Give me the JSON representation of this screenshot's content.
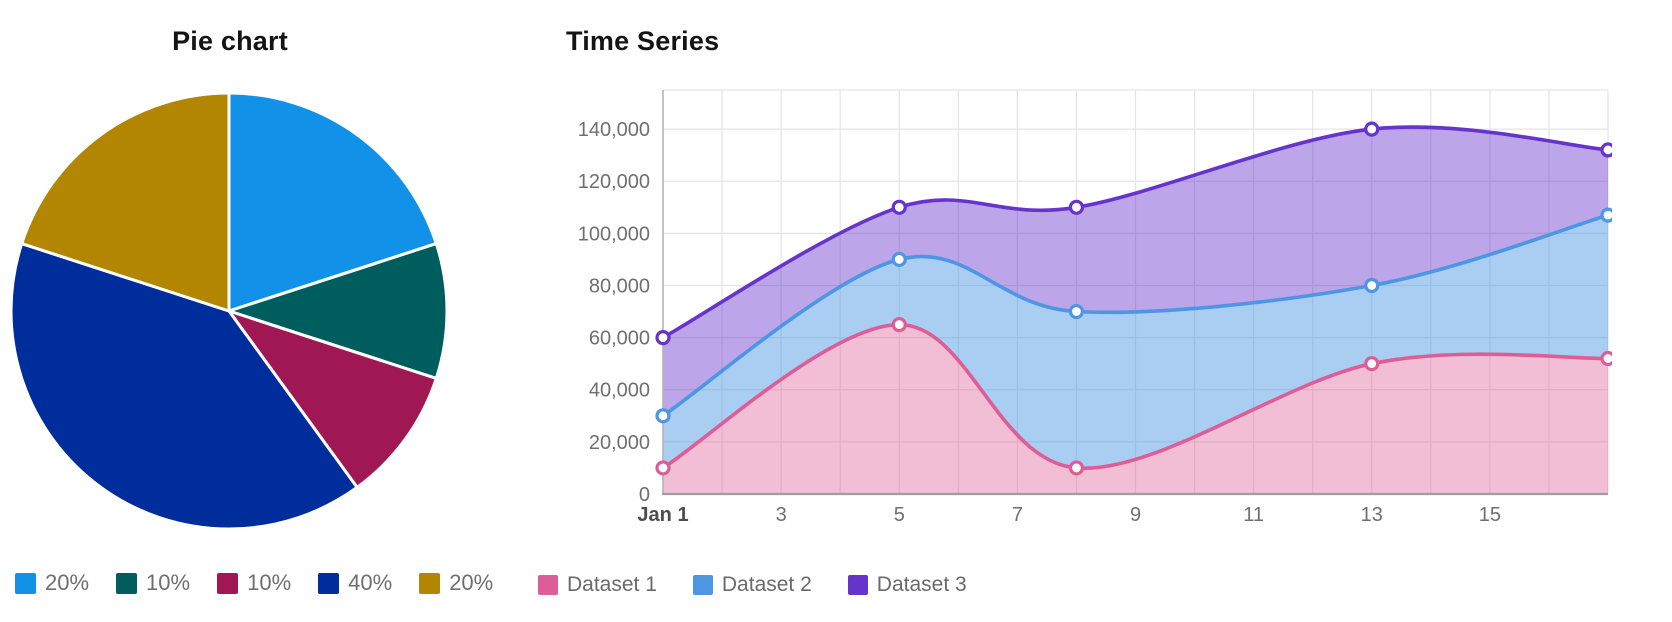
{
  "chart_data": [
    {
      "type": "pie",
      "title": "Pie chart",
      "labels": [
        "20%",
        "10%",
        "10%",
        "40%",
        "20%"
      ],
      "values": [
        20,
        10,
        10,
        40,
        20
      ],
      "colors": [
        "#1192e8",
        "#005d5d",
        "#9f1853",
        "#002d9c",
        "#b28600"
      ],
      "start_angle": "top",
      "direction": "clockwise",
      "slice_border_color": "#ffffff",
      "legend_position": "bottom"
    },
    {
      "type": "area",
      "title": "Time Series",
      "x_days": [
        1,
        5,
        8,
        13,
        17
      ],
      "x_ticks": [
        {
          "day": 1,
          "label": "Jan 1",
          "bold": true
        },
        {
          "day": 3,
          "label": "3"
        },
        {
          "day": 5,
          "label": "5"
        },
        {
          "day": 7,
          "label": "7"
        },
        {
          "day": 9,
          "label": "9"
        },
        {
          "day": 11,
          "label": "11"
        },
        {
          "day": 13,
          "label": "13"
        },
        {
          "day": 15,
          "label": "15"
        }
      ],
      "xlim_days": [
        1,
        17
      ],
      "y_ticks": [
        0,
        20000,
        40000,
        60000,
        80000,
        100000,
        120000,
        140000
      ],
      "ylim": [
        0,
        155000
      ],
      "grid": true,
      "legend_position": "bottom",
      "point_style": "white-filled-circle",
      "series": [
        {
          "name": "Dataset 1",
          "color": "#dd5d97",
          "fill": "rgba(222,93,150,0.40)",
          "values": [
            10000,
            65000,
            10000,
            50000,
            52000
          ]
        },
        {
          "name": "Dataset 2",
          "color": "#4d96e3",
          "fill": "rgba(77,150,227,0.48)",
          "values": [
            30000,
            90000,
            70000,
            80000,
            107000
          ]
        },
        {
          "name": "Dataset 3",
          "color": "#6633cc",
          "fill": "rgba(102,51,204,0.44)",
          "values": [
            60000,
            110000,
            110000,
            140000,
            132000
          ]
        }
      ],
      "grid_color": "#e4e4e4",
      "axis_color": "#9e9e9e",
      "tick_color": "#6f6f6f",
      "first_tick_color": "#4c4c4c"
    }
  ]
}
